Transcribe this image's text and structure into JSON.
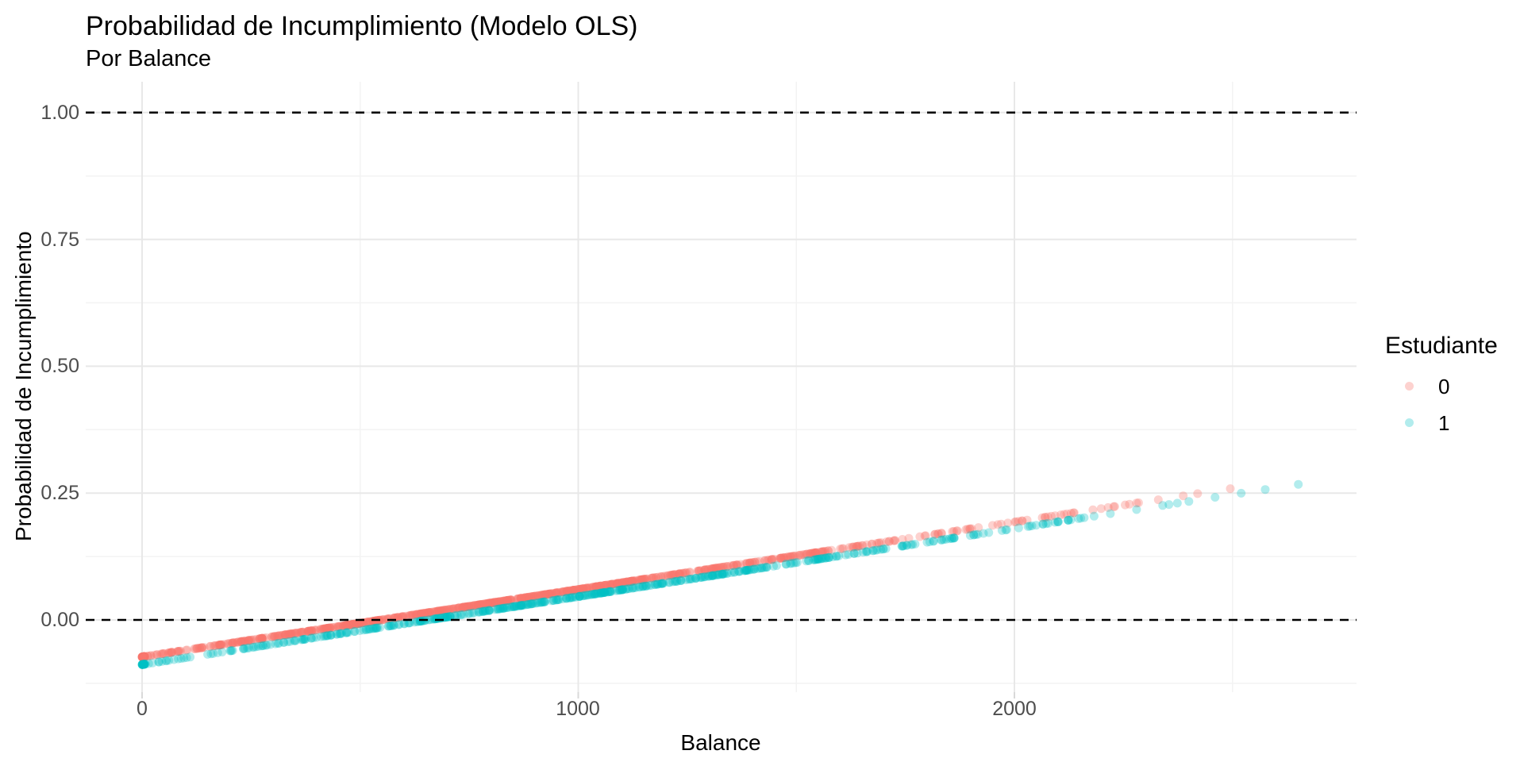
{
  "title": "Probabilidad de Incumplimiento (Modelo OLS)",
  "subtitle": "Por Balance",
  "chart_data": {
    "type": "scatter",
    "title": "Probabilidad de Incumplimiento (Modelo OLS)",
    "subtitle": "Por Balance",
    "xlabel": "Balance",
    "ylabel": "Probabilidad de Incumplimiento",
    "xlim": [
      -133,
      2786
    ],
    "ylim": [
      -0.142,
      1.061
    ],
    "x_ticks": [
      0,
      1000,
      2000
    ],
    "x_tick_labels": [
      "0",
      "1000",
      "2000"
    ],
    "y_ticks": [
      0,
      0.25,
      0.5,
      0.75,
      1
    ],
    "y_tick_labels": [
      "0.00",
      "0.25",
      "0.50",
      "0.75",
      "1.00"
    ],
    "x_minor_gridlines": [
      500,
      1500,
      2500
    ],
    "y_minor_gridlines": [
      -0.125,
      0.125,
      0.375,
      0.625,
      0.875
    ],
    "grid": "major and minor, light gray, white background",
    "major_grid_color": "#E8E8E8",
    "minor_grid_color": "#F3F3F3",
    "tick_label_color": "#4d4d4d",
    "reference_lines": [
      {
        "y": 0.0,
        "style": "dashed",
        "color": "#000000"
      },
      {
        "y": 1.0,
        "style": "dashed",
        "color": "#000000"
      }
    ],
    "legend": {
      "title": "Estudiante",
      "position": "right",
      "items": [
        {
          "label": "0",
          "color": "#F8766D"
        },
        {
          "label": "1",
          "color": "#00BFC4"
        }
      ]
    },
    "point_radius": 5.5,
    "series": [
      {
        "name": "0",
        "color": "#F8766D",
        "opacity": 0.33,
        "model": "OLS line: prob = -0.073 + 0.000133 * balance",
        "intercept": -0.073,
        "slope": 0.000133,
        "x_min": 0,
        "x_max": 2495,
        "y_at_x_min": -0.073,
        "y_at_x_max": 0.259,
        "n_points": 950,
        "x_mean": 800,
        "x_sd": 560,
        "zero_balance_frac": 0.06,
        "seed": 20,
        "tail_x": [
          1950,
          2010,
          2070,
          2130,
          2180,
          2230,
          2280,
          2330,
          2387,
          2420,
          2495
        ]
      },
      {
        "name": "1",
        "color": "#00BFC4",
        "opacity": 0.3,
        "model": "OLS line: prob = -0.088 + 0.000134 * balance",
        "intercept": -0.088,
        "slope": 0.000134,
        "x_min": 0,
        "x_max": 2654,
        "y_at_x_min": -0.088,
        "y_at_x_max": 0.268,
        "n_points": 520,
        "x_mean": 950,
        "x_sd": 560,
        "zero_balance_frac": 0.05,
        "seed": 77,
        "tail_x": [
          1980,
          2040,
          2100,
          2160,
          2220,
          2280,
          2340,
          2400,
          2460,
          2520,
          2575,
          2651
        ]
      }
    ]
  }
}
